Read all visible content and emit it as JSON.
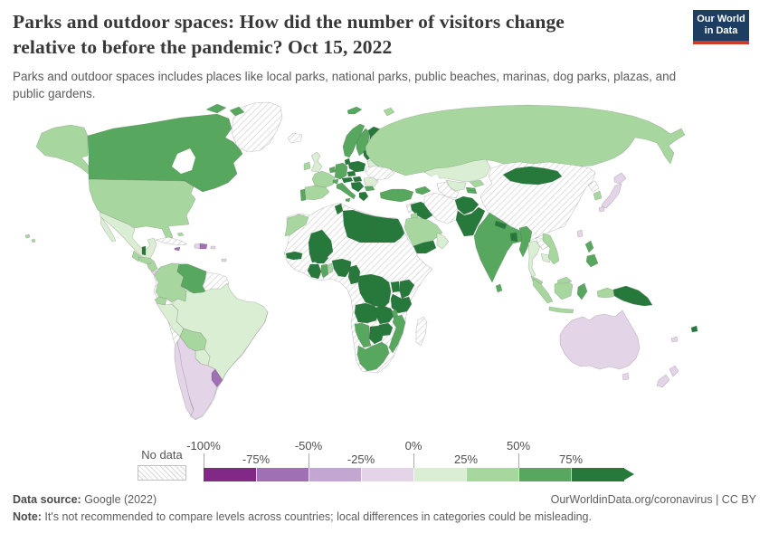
{
  "header": {
    "title_line1": "Parks and outdoor spaces: How did the number of visitors change",
    "title_line2": "relative to before the pandemic? Oct 15, 2022",
    "subtitle": "Parks and outdoor spaces includes places like local parks, national parks, public beaches, marinas, dog parks, plazas, and public gardens.",
    "logo": {
      "line1": "Our World",
      "line2": "in Data",
      "bg": "#1d3d63",
      "accent": "#cf3b29"
    }
  },
  "legend": {
    "no_data_label": "No data",
    "ticks": [
      {
        "label": "-100%",
        "major": true
      },
      {
        "label": "-75%",
        "major": false
      },
      {
        "label": "-50%",
        "major": true
      },
      {
        "label": "-25%",
        "major": false
      },
      {
        "label": "0%",
        "major": true
      },
      {
        "label": "25%",
        "major": false
      },
      {
        "label": "50%",
        "major": true
      },
      {
        "label": "75%",
        "major": false
      }
    ],
    "colors": [
      "#822887",
      "#9f70b4",
      "#c3a6d2",
      "#e4d4e8",
      "#d9eed2",
      "#a7d79f",
      "#57a75e",
      "#26793b"
    ]
  },
  "palette": {
    "p4": "#822887",
    "p3": "#9f70b4",
    "p2": "#c3a6d2",
    "p1": "#e4d4e8",
    "g1": "#d9eed2",
    "g2": "#a7d79f",
    "g3": "#57a75e",
    "g4": "#26793b"
  },
  "map": {
    "no_data_style": "gray-diagonal-hatch",
    "countries": {
      "greenland": "nd",
      "iceland": "nd",
      "alaska": "g2",
      "canada": "g3",
      "arctic-island-1": "g3",
      "arctic-island-2": "g3",
      "usa": "g2",
      "mexico": "g1",
      "baja": "g1",
      "guatemala": "g2",
      "belize": "g4",
      "honduras": "g2",
      "nicaragua": "g2",
      "costa-rica": "p1",
      "panama": "p1",
      "cuba": "nd",
      "jamaica": "p3",
      "haiti": "p1",
      "dominican-republic": "p3",
      "puerto-rico": "p1",
      "bahamas": "g2",
      "trinidad": "p1",
      "hawaii-1": "g2",
      "hawaii-2": "g2",
      "colombia": "g2",
      "venezuela": "g3",
      "ecuador": "g2",
      "peru": "g1",
      "brazil": "g1",
      "bolivia": "g2",
      "paraguay": "g1",
      "uruguay": "p3",
      "argentina": "p1",
      "chile": "p1",
      "guyana": "nd",
      "suriname": "nd",
      "morocco": "g2",
      "algeria": "nd",
      "tunisia": "g4",
      "libya": "g4",
      "egypt": "g4",
      "mali": "g4",
      "senegal": "g4",
      "burkina-faso": "g4",
      "cote-divoire": "g4",
      "ghana": "g3",
      "benin": "g2",
      "nigeria": "g4",
      "cameroon": "g4",
      "drc": "g4",
      "uganda": "g4",
      "kenya": "g4",
      "tanzania": "g4",
      "angola": "g4",
      "zambia": "g4",
      "zimbabwe": "g4",
      "botswana": "g4",
      "namibia": "g3",
      "south-africa": "g3",
      "mozambique": "g3",
      "malawi": "g3",
      "madagascar": "nd",
      "norway": "g3",
      "svalbard": "g3",
      "sweden": "g3",
      "finland": "g4",
      "denmark": "g4",
      "united-kingdom": "g1",
      "ireland": "g2",
      "portugal": "g3",
      "spain": "g2",
      "france": "g2",
      "benelux": "g3",
      "germany": "g3",
      "switzerland": "g3",
      "czechia": "g4",
      "austria": "g4",
      "poland": "g4",
      "baltics": "g4",
      "belarus": "g1",
      "ukraine": "nd",
      "romania": "g1",
      "hungary": "g4",
      "balkans": "g4",
      "bulgaria": "g3",
      "italy": "g3",
      "sicily": "g3",
      "greece": "g4",
      "turkey": "g3",
      "caucasus": "g3",
      "russia": "g2",
      "novaya-zemlya": "g2",
      "kazakhstan": "g1",
      "uzbekistan": "g1",
      "turkmenistan": "nd",
      "kyrgyzstan": "g2",
      "tajikistan": "g3",
      "iran": "nd",
      "iraq": "g4",
      "syria": "nd",
      "jordan": "g2",
      "saudi-arabia": "g2",
      "yemen": "g4",
      "oman": "g1",
      "afghanistan": "g4",
      "pakistan": "g4",
      "india": "g3",
      "nepal": "g4",
      "bangladesh": "g4",
      "sri-lanka": "g3",
      "myanmar": "g3",
      "thailand": "g1",
      "laos": "nd",
      "vietnam": "g2",
      "cambodia": "g1",
      "malaysia": "g2",
      "borneo-malaysia": "g2",
      "china": "nd",
      "mongolia": "g4",
      "north-korea": "nd",
      "south-korea": "g2",
      "japan-hokkaido": "p1",
      "japan-honshu": "p1",
      "japan-kyushu": "p1",
      "taiwan": "p1",
      "philippines-north": "g3",
      "philippines-south": "g3",
      "sumatra": "g2",
      "java": "g2",
      "borneo-indonesia": "g2",
      "sulawesi": "g3",
      "west-papua": "g2",
      "papua-new-guinea": "g4",
      "fiji": "g4",
      "new-caledonia": "p1",
      "australia": "p1",
      "tasmania": "p1",
      "new-zealand-north": "p1",
      "new-zealand-south": "p1"
    }
  },
  "footer": {
    "source_label": "Data source:",
    "source_value": " Google (2022)",
    "link": "OurWorldinData.org/coronavirus | CC BY",
    "note_label": "Note:",
    "note_value": " It's not recommended to compare levels across countries; local differences in categories could be misleading."
  }
}
